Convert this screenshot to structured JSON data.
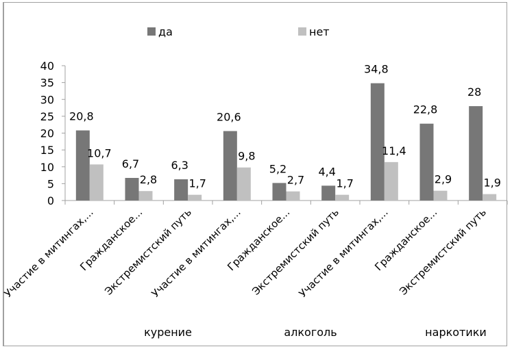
{
  "chart_data": {
    "type": "bar",
    "title": "",
    "xlabel": "",
    "ylabel": "",
    "ylim": [
      0,
      40
    ],
    "yticks": [
      0,
      5,
      10,
      15,
      20,
      25,
      30,
      35,
      40
    ],
    "grid": false,
    "legend_position": "top",
    "categories": [
      "Участие в митингах,...",
      "Гражданское...",
      "Экстремистский путь",
      "Участие в митингах,...",
      "Гражданское...",
      "Экстремистский путь",
      "Участие в митингах,...",
      "Гражданское...",
      "Экстремистский путь"
    ],
    "groups": [
      {
        "label": "курение",
        "span": [
          0,
          2
        ]
      },
      {
        "label": "алкоголь",
        "span": [
          3,
          5
        ]
      },
      {
        "label": "наркотики",
        "span": [
          6,
          8
        ]
      }
    ],
    "series": [
      {
        "name": "да",
        "color": "#777777",
        "values": [
          20.8,
          6.7,
          6.3,
          20.6,
          5.2,
          4.4,
          34.8,
          22.8,
          28
        ],
        "labels": [
          "20,8",
          "6,7",
          "6,3",
          "20,6",
          "5,2",
          "4,4",
          "34,8",
          "22,8",
          "28"
        ]
      },
      {
        "name": "нет",
        "color": "#c0c0c0",
        "values": [
          10.7,
          2.8,
          1.7,
          9.8,
          2.7,
          1.7,
          11.4,
          2.9,
          1.9
        ],
        "labels": [
          "10,7",
          "2,8",
          "1,7",
          "9,8",
          "2,7",
          "1,7",
          "11,4",
          "2,9",
          "1,9"
        ]
      }
    ]
  }
}
